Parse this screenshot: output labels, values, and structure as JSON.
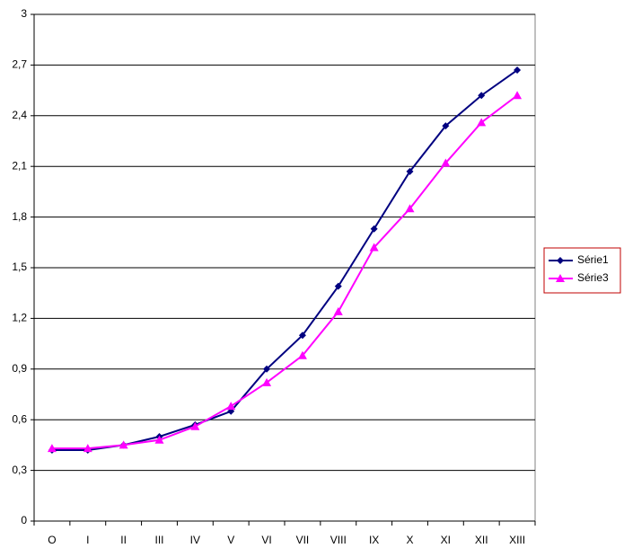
{
  "chart_data": {
    "type": "line",
    "categories": [
      "O",
      "I",
      "II",
      "III",
      "IV",
      "V",
      "VI",
      "VII",
      "VIII",
      "IX",
      "X",
      "XI",
      "XII",
      "XIII"
    ],
    "series": [
      {
        "name": "Série1",
        "color": "#000080",
        "marker": "diamond",
        "values": [
          0.42,
          0.42,
          0.45,
          0.5,
          0.57,
          0.65,
          0.9,
          1.1,
          1.39,
          1.73,
          2.07,
          2.34,
          2.52,
          2.67
        ]
      },
      {
        "name": "Série3",
        "color": "#ff00ff",
        "marker": "triangle",
        "values": [
          0.43,
          0.43,
          0.45,
          0.48,
          0.56,
          0.68,
          0.82,
          0.98,
          1.24,
          1.62,
          1.85,
          2.12,
          2.36,
          2.52
        ]
      }
    ],
    "ylim": [
      0,
      3
    ],
    "yticks": [
      0,
      {
        "value": 0.3,
        "label": "0,3"
      },
      {
        "value": 0.6,
        "label": "0,6"
      },
      {
        "value": 0.9,
        "label": "0,9"
      },
      {
        "value": 1.2,
        "label": "1,2"
      },
      {
        "value": 1.5,
        "label": "1,5"
      },
      {
        "value": 1.8,
        "label": "1,8"
      },
      {
        "value": 2.1,
        "label": "2,1"
      },
      {
        "value": 2.4,
        "label": "2,4"
      },
      {
        "value": 2.7,
        "label": "2,7"
      },
      3
    ],
    "grid": true,
    "legend": "right"
  }
}
